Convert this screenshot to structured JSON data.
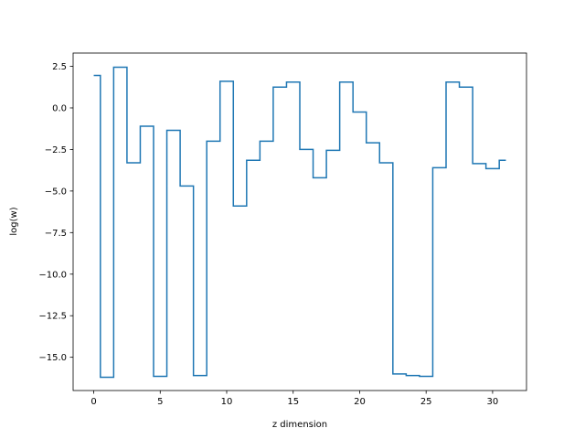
{
  "chart_data": {
    "type": "line",
    "drawstyle": "steps-mid",
    "xlabel": "z dimension",
    "ylabel": "log(w)",
    "xlim": [
      -1.55,
      32.55
    ],
    "ylim": [
      -17.0,
      3.3
    ],
    "xticks": [
      0,
      5,
      10,
      15,
      20,
      25,
      30
    ],
    "xtick_labels": [
      "0",
      "5",
      "10",
      "15",
      "20",
      "25",
      "30"
    ],
    "yticks": [
      -15.0,
      -12.5,
      -10.0,
      -7.5,
      -5.0,
      -2.5,
      0.0,
      2.5
    ],
    "ytick_labels": [
      "−15.0",
      "−12.5",
      "−10.0",
      "−7.5",
      "−5.0",
      "−2.5",
      "0.0",
      "2.5"
    ],
    "grid": false,
    "series": [
      {
        "color": "#1f77b4",
        "x": [
          0,
          1,
          2,
          3,
          4,
          5,
          6,
          7,
          8,
          9,
          10,
          11,
          12,
          13,
          14,
          15,
          16,
          17,
          18,
          19,
          20,
          21,
          22,
          23,
          24,
          25,
          26,
          27,
          28,
          29,
          30,
          31
        ],
        "y": [
          1.95,
          -16.2,
          2.45,
          -3.3,
          -1.1,
          -16.15,
          -1.35,
          -4.7,
          -16.1,
          -2.0,
          1.6,
          -5.9,
          -3.15,
          -2.0,
          1.25,
          1.55,
          -2.5,
          -4.2,
          -2.55,
          1.55,
          -0.25,
          -2.1,
          -3.3,
          -16.0,
          -16.1,
          -16.15,
          -3.6,
          1.55,
          1.25,
          -3.35,
          -3.65,
          -3.15
        ]
      }
    ]
  }
}
